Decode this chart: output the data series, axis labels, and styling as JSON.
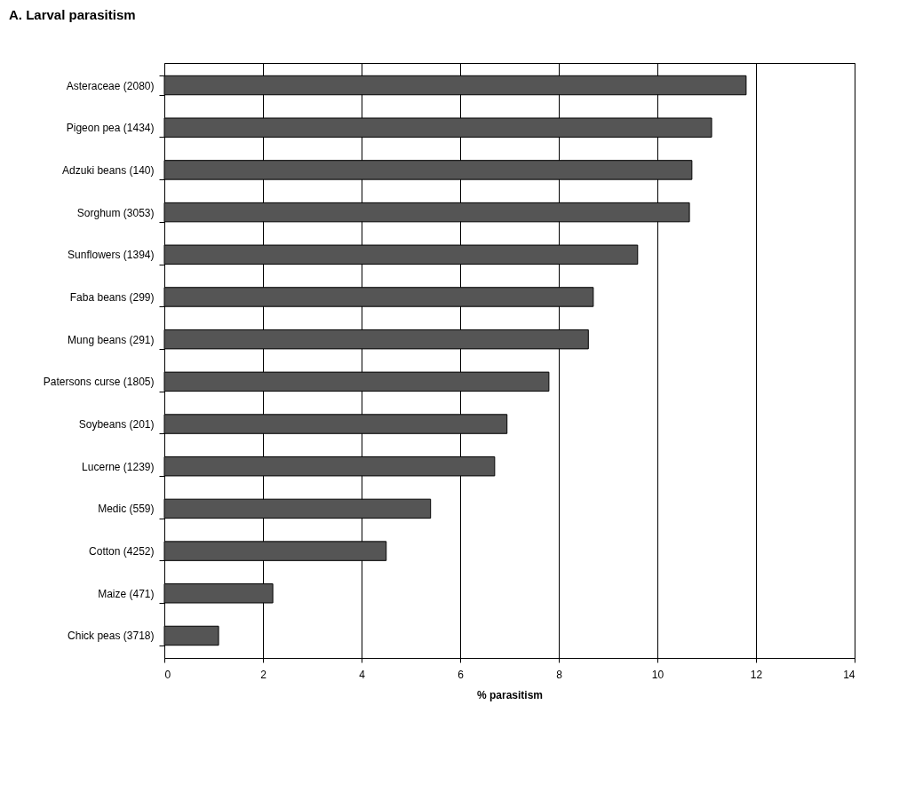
{
  "chart_data": {
    "type": "bar",
    "orientation": "horizontal",
    "title": "A. Larval parasitism",
    "xlabel": "% parasitism",
    "categories": [
      "Asteraceae (2080)",
      "Pigeon pea (1434)",
      "Adzuki beans (140)",
      "Sorghum (3053)",
      "Sunflowers (1394)",
      "Faba beans (299)",
      "Mung beans (291)",
      "Patersons curse (1805)",
      "Soybeans (201)",
      "Lucerne (1239)",
      "Medic (559)",
      "Cotton (4252)",
      "Maize (471)",
      "Chick peas (3718)"
    ],
    "values": [
      11.8,
      11.1,
      10.7,
      10.65,
      9.6,
      8.7,
      8.6,
      7.8,
      6.95,
      6.7,
      5.4,
      4.5,
      2.2,
      1.1
    ],
    "color": "#555555",
    "xlim": [
      0,
      14
    ],
    "xticks": [
      0,
      2,
      4,
      6,
      8,
      10,
      12,
      14
    ],
    "grid": "x"
  }
}
